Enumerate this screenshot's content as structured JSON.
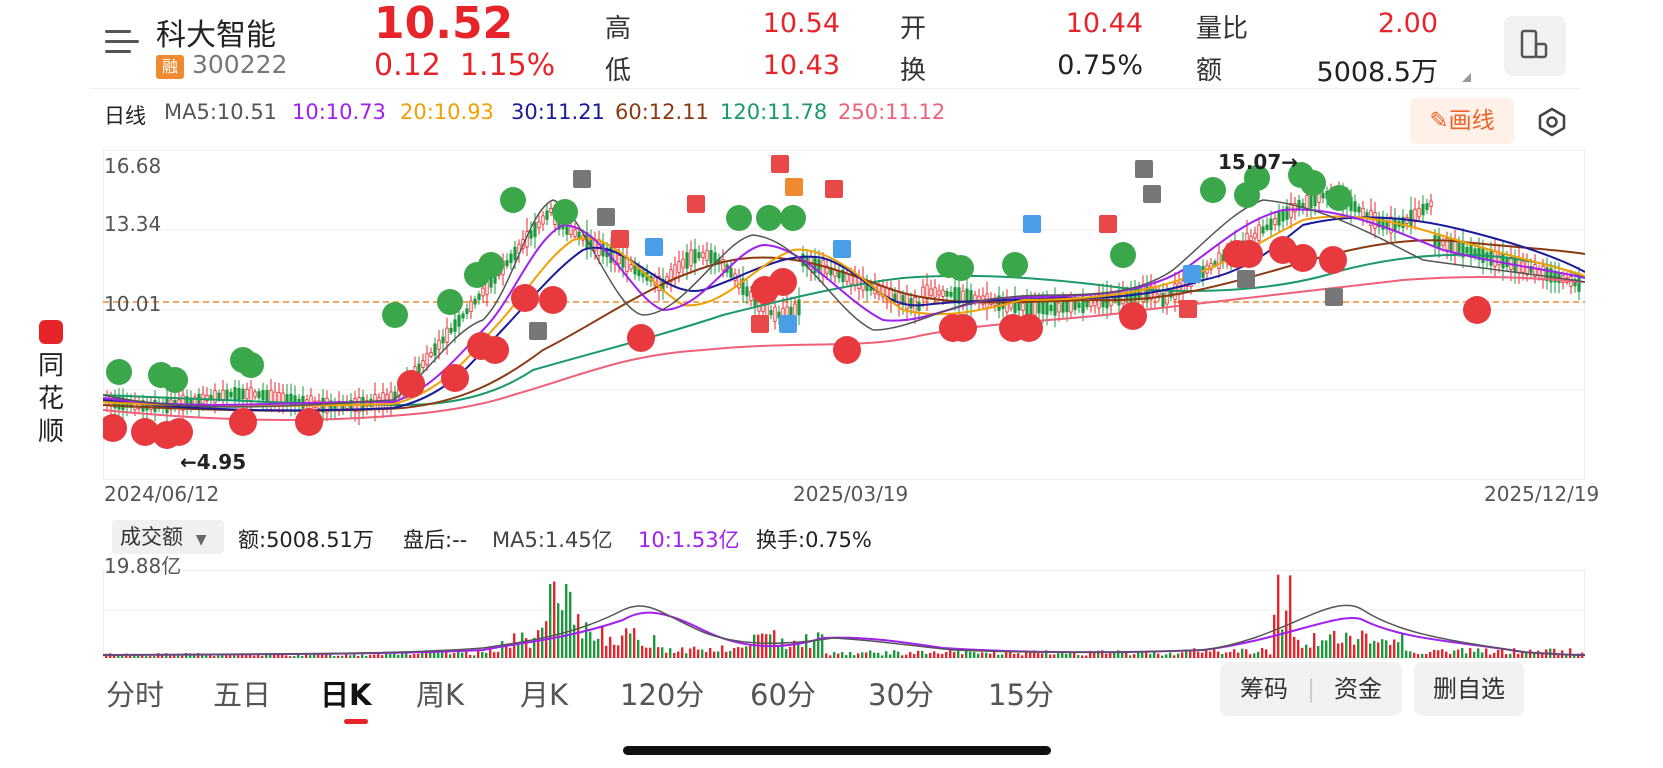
{
  "header": {
    "stock_name": "科大智能",
    "badge": "融",
    "code": "300222",
    "price": "10.52",
    "change": "0.12",
    "change_pct": "1.15%",
    "stats": {
      "high_label": "高",
      "high": "10.54",
      "low_label": "低",
      "low": "10.43",
      "open_label": "开",
      "open": "10.44",
      "turnover_label": "换",
      "turnover": "0.75%",
      "vol_ratio_label": "量比",
      "vol_ratio": "2.00",
      "amount_label": "额",
      "amount": "5008.5万"
    }
  },
  "ma": {
    "period": "日线",
    "ma5": "MA5:10.51",
    "ma10": "10:10.73",
    "ma20": "20:10.93",
    "ma30": "30:11.21",
    "ma60": "60:12.11",
    "ma120": "120:11.78",
    "ma250": "250:11.12"
  },
  "draw_button": "画线",
  "brand": "同花顺",
  "chart": {
    "y_top": "16.68",
    "y_mid": "13.34",
    "y_low": "10.01",
    "high_mark": "15.07→",
    "low_mark": "←4.95",
    "date_start": "2024/06/12",
    "date_mid": "2025/03/19",
    "date_end": "2025/12/19"
  },
  "volume": {
    "selector": "成交额",
    "amount": "额:5008.51万",
    "after_hours": "盘后:--",
    "ma5": "MA5:1.45亿",
    "ma10": "10:1.53亿",
    "turnover": "换手:0.75%",
    "y_label": "19.88亿"
  },
  "tabs": [
    "分时",
    "五日",
    "日K",
    "周K",
    "月K",
    "120分",
    "60分",
    "30分",
    "15分"
  ],
  "active_tab": "日K",
  "buttons": {
    "chips": "筹码",
    "funds": "资金",
    "remove": "删自选"
  },
  "colors": {
    "up": "#e8242b",
    "down": "#1a9a3c",
    "ma5": "#555555",
    "ma10": "#a020f0",
    "ma20": "#f0a000",
    "ma30": "#1a1a9a",
    "ma60": "#8b3a10",
    "ma120": "#1a9a6a",
    "ma250": "#f0607a"
  }
}
